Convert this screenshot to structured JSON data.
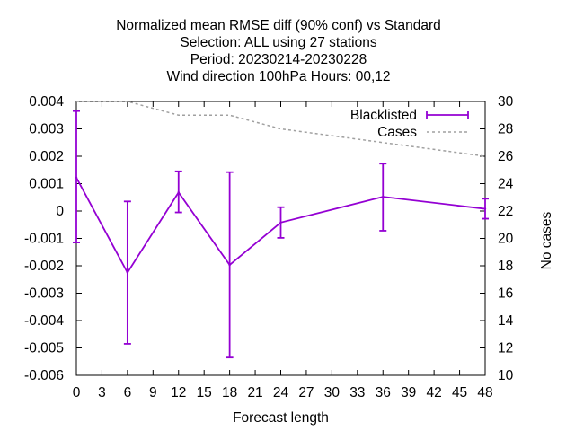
{
  "chart_data": {
    "type": "line",
    "title_lines": [
      "Normalized mean RMSE diff (90% conf) vs Standard",
      "Selection: ALL using    27 stations",
      "Period: 20230214-20230228",
      "Wind direction 100hPa   Hours:  00,12"
    ],
    "xlabel": "Forecast length",
    "ylabel": "",
    "y2label": "No cases",
    "xlim": [
      0,
      48
    ],
    "ylim": [
      -0.006,
      0.004
    ],
    "y2lim": [
      10,
      30
    ],
    "x_ticks": [
      "0",
      "3",
      "6",
      "9",
      "12",
      "15",
      "18",
      "21",
      "24",
      "27",
      "30",
      "33",
      "36",
      "39",
      "42",
      "45",
      "48"
    ],
    "y_ticks": [
      "0.004",
      "0.003",
      "0.002",
      "0.001",
      "0",
      "-0.001",
      "-0.002",
      "-0.003",
      "-0.004",
      "-0.005",
      "-0.006"
    ],
    "y2_ticks": [
      "30",
      "28",
      "26",
      "24",
      "22",
      "20",
      "18",
      "16",
      "14",
      "12",
      "10"
    ],
    "legend_position": "top-right",
    "grid": false,
    "series": [
      {
        "name": "Blacklisted",
        "axis": "y",
        "color": "#9400d3",
        "style": "line-errorbars",
        "points": [
          {
            "x": 0,
            "y": 0.00122,
            "low": -0.00115,
            "high": 0.00365
          },
          {
            "x": 6,
            "y": -0.00225,
            "low": -0.00485,
            "high": 0.00035
          },
          {
            "x": 12,
            "y": 0.00068,
            "low": -5e-05,
            "high": 0.00145
          },
          {
            "x": 18,
            "y": -0.00197,
            "low": -0.00535,
            "high": 0.00142
          },
          {
            "x": 24,
            "y": -0.00042,
            "low": -0.00098,
            "high": 0.00014
          },
          {
            "x": 36,
            "y": 0.00052,
            "low": -0.00072,
            "high": 0.00173
          },
          {
            "x": 48,
            "y": 8e-05,
            "low": -0.00028,
            "high": 0.00045
          }
        ]
      },
      {
        "name": "Cases",
        "axis": "y2",
        "color": "#a0a0a0",
        "style": "dashed",
        "points": [
          {
            "x": 0,
            "y": 30
          },
          {
            "x": 6,
            "y": 30
          },
          {
            "x": 12,
            "y": 29
          },
          {
            "x": 18,
            "y": 29
          },
          {
            "x": 24,
            "y": 28
          },
          {
            "x": 36,
            "y": 27
          },
          {
            "x": 48,
            "y": 26
          }
        ]
      }
    ]
  }
}
